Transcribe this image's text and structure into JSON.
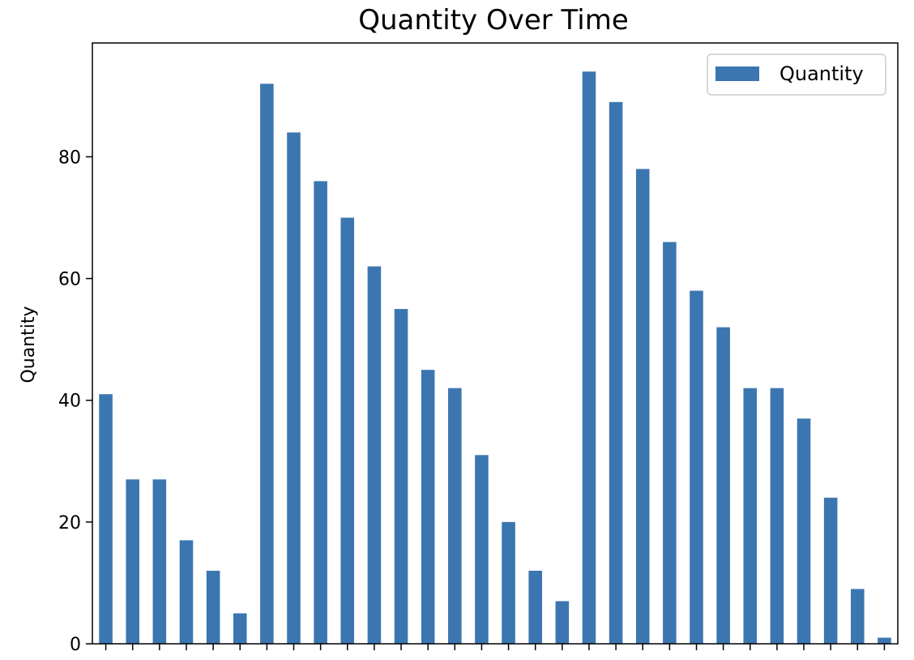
{
  "chart_data": {
    "type": "bar",
    "title": "Quantity Over Time",
    "xlabel": "",
    "ylabel": "Quantity",
    "ylim": [
      0,
      98.7
    ],
    "yticks": [
      0,
      20,
      40,
      60,
      80
    ],
    "legend": {
      "placement": "top-right",
      "entries": [
        "Quantity"
      ]
    },
    "grid": false,
    "colors": {
      "bar": "#3b76b1",
      "axis": "#000000"
    },
    "series": [
      {
        "name": "Quantity",
        "values": [
          41,
          27,
          27,
          17,
          12,
          5,
          92,
          84,
          76,
          70,
          62,
          55,
          45,
          42,
          31,
          20,
          12,
          7,
          94,
          89,
          78,
          66,
          58,
          52,
          42,
          42,
          37,
          24,
          9,
          1
        ]
      }
    ]
  }
}
